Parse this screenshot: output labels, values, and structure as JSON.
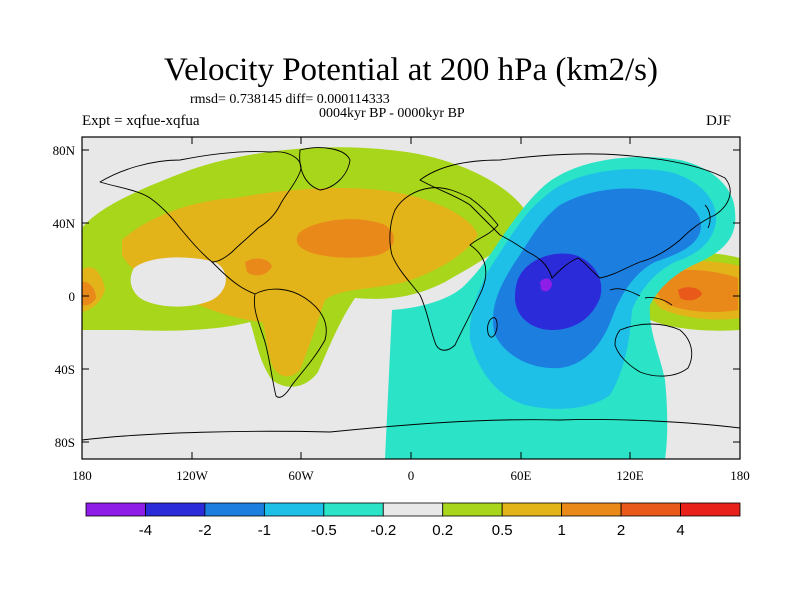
{
  "map": {
    "title": "Velocity Potential at 200 hPa (km2/s)",
    "stats": "rmsd= 0.738145 diff= 0.000114333",
    "subtitle_center": "0004kyr BP - 0000kyr BP",
    "subtitle_left": "Expt = xqfue-xqfua",
    "subtitle_right": "DJF",
    "lon_ticks": [
      "180",
      "120W",
      "60W",
      "0",
      "60E",
      "120E",
      "180"
    ],
    "lat_ticks": [
      "80N",
      "40N",
      "0",
      "40S",
      "80S"
    ]
  },
  "colorbar": {
    "colors": [
      "#8f1de8",
      "#2b2bd9",
      "#1c7fe0",
      "#1fc0e8",
      "#2be3c7",
      "#e8e8e8",
      "#a8d61a",
      "#e3b31a",
      "#e8891a",
      "#e8591a",
      "#e8221a"
    ],
    "labels": [
      "-4",
      "-2",
      "-1",
      "-0.5",
      "-0.2",
      "0.2",
      "0.5",
      "1",
      "2",
      "4"
    ]
  },
  "colors": {
    "land_outline": "#000000",
    "neutral_background": "#e8e8e8"
  }
}
